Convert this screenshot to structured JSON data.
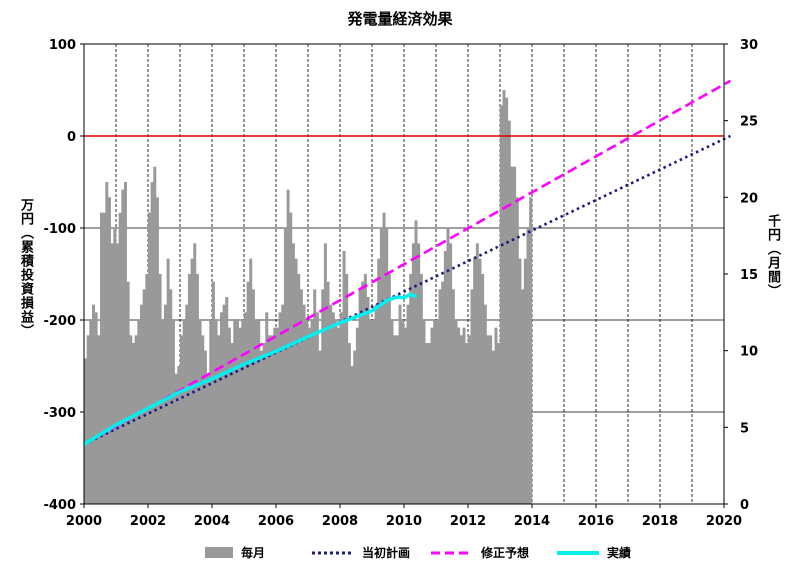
{
  "chart_data": {
    "type": "bar+line",
    "title": "発電量経済効果",
    "left_axis": {
      "label": "万円（累積投資損益）",
      "range": [
        -400,
        100
      ],
      "ticks": [
        -400,
        -300,
        -200,
        -100,
        0,
        100
      ]
    },
    "right_axis": {
      "label": "千円（月間）",
      "range": [
        0,
        30
      ],
      "ticks": [
        0,
        5,
        10,
        15,
        20,
        25,
        30
      ]
    },
    "x_axis": {
      "range": [
        2000,
        2020
      ],
      "ticks": [
        2000,
        2002,
        2004,
        2006,
        2008,
        2010,
        2012,
        2014,
        2016,
        2018,
        2020
      ]
    },
    "reference_line": {
      "value": 0,
      "color": "#e00000"
    },
    "grid": "vertical dashed yearly, horizontal at left-axis ticks",
    "legend": [
      {
        "name": "毎月",
        "style": "bar",
        "color": "#999999"
      },
      {
        "name": "当初計画",
        "style": "dotted",
        "color": "#1a1a80"
      },
      {
        "name": "修正予想",
        "style": "dashed",
        "color": "#ff00ff"
      },
      {
        "name": "実績",
        "style": "solid",
        "color": "#00f0f0"
      }
    ],
    "monthly_bars": {
      "axis": "right",
      "start": 2000.0,
      "step_years": 0.0833,
      "values": [
        9.5,
        11,
        12,
        13,
        12.5,
        11,
        19,
        19,
        21,
        20,
        17,
        18,
        17,
        19,
        20.5,
        21,
        14.5,
        11,
        10.5,
        11,
        12,
        13,
        14,
        15,
        19,
        21,
        22,
        20,
        15,
        12,
        13,
        16,
        14,
        12,
        8.5,
        9,
        11,
        12,
        13,
        15,
        16,
        17,
        15,
        12,
        11,
        10,
        8.5,
        12,
        14.5,
        12,
        11,
        12.5,
        13,
        13.5,
        11.5,
        10.5,
        12,
        12,
        11.5,
        12,
        12.5,
        14.5,
        16,
        14,
        12,
        12,
        10,
        10.5,
        12.5,
        11,
        11,
        11.5,
        11.5,
        12.5,
        13,
        18,
        20.5,
        19,
        17,
        16,
        15,
        14,
        13,
        12,
        11.5,
        12,
        14,
        12.5,
        10,
        14,
        17,
        14.5,
        13,
        12.5,
        12,
        11.5,
        12.5,
        16.5,
        15,
        10.5,
        9,
        10,
        11.5,
        14,
        14.5,
        15,
        13.5,
        12,
        12,
        13,
        16,
        18,
        19,
        18,
        15,
        12,
        11,
        11,
        13,
        12,
        11.5,
        13,
        15,
        17,
        18.5,
        17,
        15,
        12,
        10.5,
        10.5,
        11.5,
        12,
        12,
        14,
        14.5,
        16.5,
        18,
        17,
        14,
        12,
        11.5,
        11,
        11.5,
        10.5,
        11,
        14,
        16,
        17,
        16,
        15,
        13,
        11,
        11,
        10,
        11.5,
        10.5,
        26,
        27,
        26.5,
        25,
        22,
        22,
        20,
        16,
        14,
        16,
        18,
        20
      ]
    },
    "series": [
      {
        "name": "当初計画",
        "x": [
          2000,
          2020.2
        ],
        "y": [
          -335,
          0
        ]
      },
      {
        "name": "修正予想",
        "x": [
          2000,
          2020.2
        ],
        "y": [
          -335,
          60
        ]
      },
      {
        "name": "実績",
        "x": [
          2000,
          2001,
          2002,
          2003,
          2004,
          2005,
          2006,
          2007,
          2008,
          2009,
          2009.5,
          2009.8,
          2010.0,
          2010.2,
          2010.4
        ],
        "y": [
          -335,
          -314,
          -296,
          -278,
          -264,
          -248,
          -234,
          -218,
          -203,
          -190,
          -178,
          -175,
          -176,
          -172,
          -175
        ]
      }
    ]
  }
}
